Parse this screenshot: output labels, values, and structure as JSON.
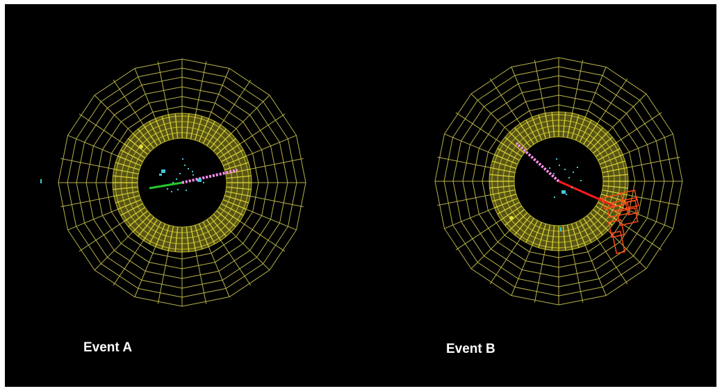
{
  "events": [
    {
      "label": "Event A"
    },
    {
      "label": "Event B"
    }
  ],
  "colors": {
    "background": "#000000",
    "outer_grid": "#b9b24a",
    "inner_calorimeter": "#e4dc3a",
    "muon_track": "#ff8ff0",
    "electron_track": "#25c92a",
    "hits": "#43c9d8",
    "jet_track": "#ff1a1a",
    "jet_cells": "#ff4a1a"
  }
}
